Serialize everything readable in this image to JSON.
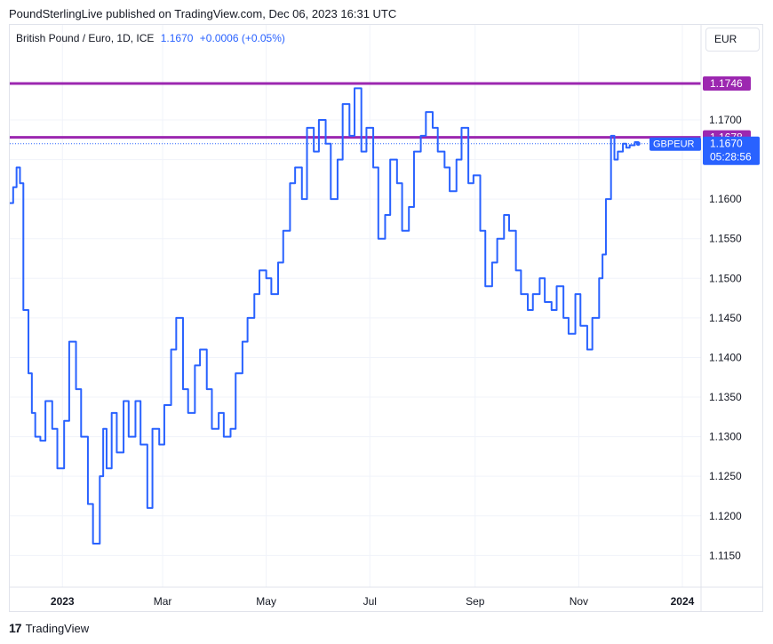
{
  "header": {
    "text": "PoundSterlingLive published on TradingView.com, Dec 06, 2023 16:31 UTC"
  },
  "legend": {
    "symbol": "British Pound / Euro, 1D, ICE",
    "price": "1.1670",
    "change": "+0.0006 (+0.05%)"
  },
  "currency_button": "EUR",
  "footer": {
    "brand": "TradingView",
    "logo_glyph": "17"
  },
  "colors": {
    "line": "#2962ff",
    "level": "#9c27b0",
    "grid": "#f0f3fa",
    "axis_text": "#131722"
  },
  "chart_data": {
    "type": "line",
    "title": "British Pound / Euro, 1D, ICE",
    "ylim": [
      1.111,
      1.182
    ],
    "x_ticks": [
      {
        "label": "2023",
        "date": "2023-01-01"
      },
      {
        "label": "Mar",
        "date": "2023-03-01"
      },
      {
        "label": "May",
        "date": "2023-05-01"
      },
      {
        "label": "Jul",
        "date": "2023-07-01"
      },
      {
        "label": "Sep",
        "date": "2023-09-01"
      },
      {
        "label": "Nov",
        "date": "2023-11-01"
      },
      {
        "label": "2024",
        "date": "2024-01-01"
      }
    ],
    "y_ticks": [
      "1.1150",
      "1.1200",
      "1.1250",
      "1.1300",
      "1.1350",
      "1.1400",
      "1.1450",
      "1.1500",
      "1.1550",
      "1.1600",
      "1.1650",
      "1.1700"
    ],
    "horizontal_lines": [
      {
        "value": 1.1746,
        "label": "1.1746"
      },
      {
        "value": 1.1678,
        "label": "1.1678"
      }
    ],
    "last_price": {
      "value": 1.167,
      "label": "1.1670",
      "name": "GBPEUR",
      "countdown": "05:28:56"
    },
    "series": [
      {
        "name": "GBPEUR",
        "x": [
          "2022-12-01",
          "2022-12-03",
          "2022-12-05",
          "2022-12-07",
          "2022-12-09",
          "2022-12-12",
          "2022-12-14",
          "2022-12-16",
          "2022-12-19",
          "2022-12-22",
          "2022-12-26",
          "2022-12-29",
          "2023-01-02",
          "2023-01-05",
          "2023-01-09",
          "2023-01-12",
          "2023-01-16",
          "2023-01-19",
          "2023-01-23",
          "2023-01-25",
          "2023-01-27",
          "2023-01-30",
          "2023-02-02",
          "2023-02-06",
          "2023-02-09",
          "2023-02-13",
          "2023-02-16",
          "2023-02-20",
          "2023-02-23",
          "2023-02-27",
          "2023-03-02",
          "2023-03-06",
          "2023-03-09",
          "2023-03-13",
          "2023-03-16",
          "2023-03-20",
          "2023-03-23",
          "2023-03-27",
          "2023-03-30",
          "2023-04-03",
          "2023-04-06",
          "2023-04-10",
          "2023-04-13",
          "2023-04-17",
          "2023-04-20",
          "2023-04-24",
          "2023-04-27",
          "2023-05-01",
          "2023-05-04",
          "2023-05-08",
          "2023-05-11",
          "2023-05-15",
          "2023-05-18",
          "2023-05-22",
          "2023-05-25",
          "2023-05-29",
          "2023-06-01",
          "2023-06-05",
          "2023-06-08",
          "2023-06-12",
          "2023-06-15",
          "2023-06-19",
          "2023-06-22",
          "2023-06-26",
          "2023-06-29",
          "2023-07-03",
          "2023-07-06",
          "2023-07-10",
          "2023-07-13",
          "2023-07-17",
          "2023-07-20",
          "2023-07-24",
          "2023-07-27",
          "2023-07-31",
          "2023-08-03",
          "2023-08-07",
          "2023-08-10",
          "2023-08-14",
          "2023-08-17",
          "2023-08-21",
          "2023-08-24",
          "2023-08-28",
          "2023-08-31",
          "2023-09-04",
          "2023-09-07",
          "2023-09-11",
          "2023-09-14",
          "2023-09-18",
          "2023-09-21",
          "2023-09-25",
          "2023-09-28",
          "2023-10-02",
          "2023-10-05",
          "2023-10-09",
          "2023-10-12",
          "2023-10-16",
          "2023-10-19",
          "2023-10-23",
          "2023-10-26",
          "2023-10-30",
          "2023-11-02",
          "2023-11-06",
          "2023-11-09",
          "2023-11-13",
          "2023-11-15",
          "2023-11-17",
          "2023-11-20",
          "2023-11-22",
          "2023-11-24",
          "2023-11-27",
          "2023-11-29",
          "2023-12-01",
          "2023-12-04",
          "2023-12-06"
        ],
        "values": [
          1.1595,
          1.1615,
          1.164,
          1.162,
          1.146,
          1.138,
          1.133,
          1.13,
          1.1295,
          1.1345,
          1.131,
          1.126,
          1.132,
          1.142,
          1.136,
          1.13,
          1.1215,
          1.1165,
          1.125,
          1.131,
          1.126,
          1.133,
          1.128,
          1.1345,
          1.13,
          1.1345,
          1.129,
          1.121,
          1.131,
          1.129,
          1.134,
          1.141,
          1.145,
          1.136,
          1.133,
          1.139,
          1.141,
          1.136,
          1.131,
          1.133,
          1.13,
          1.131,
          1.138,
          1.142,
          1.145,
          1.148,
          1.151,
          1.15,
          1.148,
          1.152,
          1.156,
          1.162,
          1.164,
          1.16,
          1.169,
          1.166,
          1.17,
          1.167,
          1.16,
          1.165,
          1.172,
          1.168,
          1.174,
          1.166,
          1.169,
          1.164,
          1.155,
          1.158,
          1.165,
          1.162,
          1.156,
          1.159,
          1.166,
          1.168,
          1.171,
          1.169,
          1.166,
          1.164,
          1.161,
          1.165,
          1.169,
          1.162,
          1.163,
          1.156,
          1.149,
          1.152,
          1.155,
          1.158,
          1.156,
          1.151,
          1.148,
          1.146,
          1.148,
          1.15,
          1.147,
          1.146,
          1.149,
          1.145,
          1.143,
          1.148,
          1.144,
          1.141,
          1.145,
          1.15,
          1.153,
          1.16,
          1.168,
          1.165,
          1.166,
          1.167,
          1.1665,
          1.1668,
          1.1672,
          1.167
        ]
      }
    ]
  }
}
